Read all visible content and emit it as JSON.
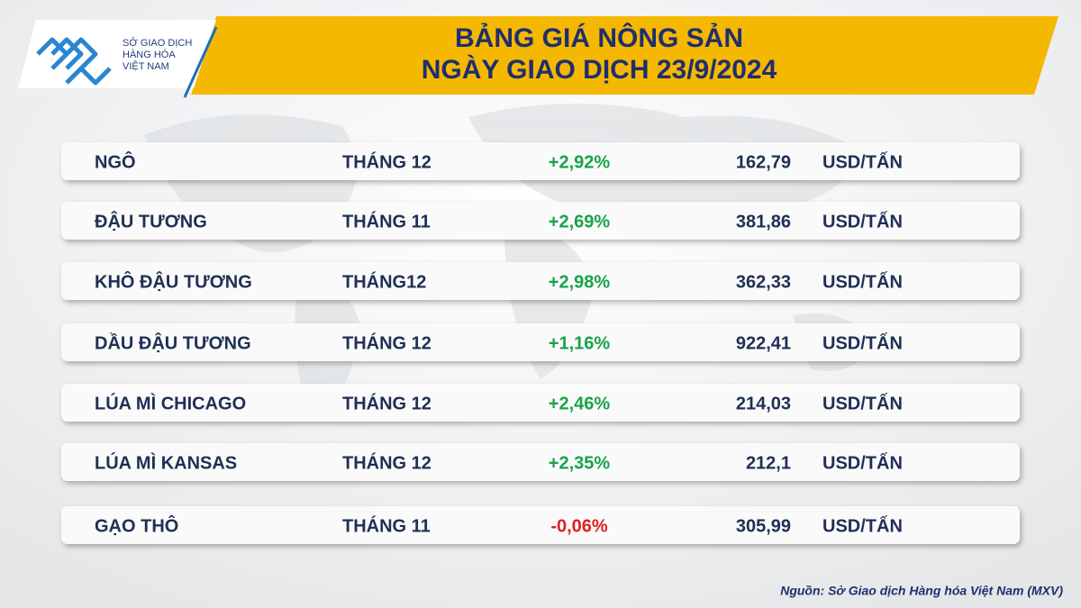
{
  "logo": {
    "lines": [
      "SỞ GIAO DỊCH",
      "HÀNG HÓA",
      "VIỆT NAM"
    ]
  },
  "header": {
    "title_lines": [
      "BẢNG GIÁ NÔNG SẢN",
      "NGÀY GIAO DỊCH 23/9/2024"
    ]
  },
  "table": {
    "rows": [
      {
        "name": "NGÔ",
        "month": "THÁNG 12",
        "change": "+2,92%",
        "change_color": "#18a34a",
        "price": "162,79",
        "unit": "USD/TẤN"
      },
      {
        "name": "ĐẬU TƯƠNG",
        "month": "THÁNG 11",
        "change": "+2,69%",
        "change_color": "#18a34a",
        "price": "381,86",
        "unit": "USD/TẤN"
      },
      {
        "name": "KHÔ ĐẬU TƯƠNG",
        "month": "THÁNG12",
        "change": "+2,98%",
        "change_color": "#18a34a",
        "price": "362,33",
        "unit": "USD/TẤN"
      },
      {
        "name": "DẦU ĐẬU TƯƠNG",
        "month": "THÁNG 12",
        "change": "+1,16%",
        "change_color": "#18a34a",
        "price": "922,41",
        "unit": "USD/TẤN"
      },
      {
        "name": "LÚA MÌ CHICAGO",
        "month": "THÁNG 12",
        "change": "+2,46%",
        "change_color": "#18a34a",
        "price": "214,03",
        "unit": "USD/TẤN"
      },
      {
        "name": "LÚA MÌ KANSAS",
        "month": "THÁNG 12",
        "change": "+2,35%",
        "change_color": "#18a34a",
        "price": "212,1",
        "unit": "USD/TẤN"
      },
      {
        "name": "GẠO THÔ",
        "month": "THÁNG 11",
        "change": "-0,06%",
        "change_color": "#e02020",
        "price": "305,99",
        "unit": "USD/TẤN"
      }
    ]
  },
  "footer": {
    "source": "Nguồn: Sở Giao dịch Hàng hóa Việt Nam (MXV)"
  }
}
